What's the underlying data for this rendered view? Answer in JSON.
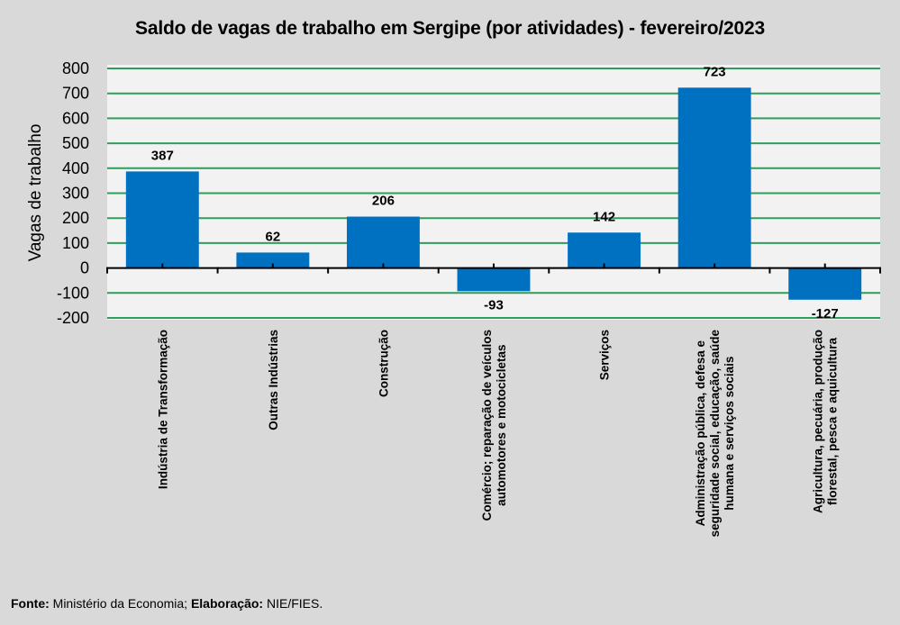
{
  "chart_data": {
    "type": "bar",
    "title": "Saldo de vagas de trabalho em Sergipe (por atividades) - fevereiro/2023",
    "xlabel": "",
    "ylabel": "Vagas de trabalho",
    "ylim": [
      -200,
      800
    ],
    "ytick_step": 100,
    "yticks": [
      "800",
      "700",
      "600",
      "500",
      "400",
      "300",
      "200",
      "100",
      "0",
      "-100",
      "-200"
    ],
    "grid": true,
    "legend": "none",
    "categories": [
      [
        "Indústria de Transformação"
      ],
      [
        "Outras Indústrias"
      ],
      [
        "Construção"
      ],
      [
        "Comércio; reparação de veículos",
        "automotores e motocicletas"
      ],
      [
        "Serviços"
      ],
      [
        "Administração pública, defesa e",
        "seguridade social, educação, saúde",
        "humana e serviços sociais"
      ],
      [
        "Agricultura, pecuária, produção",
        "florestal, pesca e aquicultura"
      ]
    ],
    "values": [
      387,
      62,
      206,
      -93,
      142,
      723,
      -127
    ],
    "data_labels": [
      "387",
      "62",
      "206",
      "-93",
      "142",
      "723",
      "-127"
    ],
    "colors": {
      "bar": "#0070c0",
      "grid": "#2e9e5b",
      "plot_bg": "#f2f2f2",
      "page_bg": "#d9d9d9",
      "axis": "#000000"
    }
  },
  "footer": {
    "source_label": "Fonte:",
    "source_text": " Ministério da Economia; ",
    "elab_label": "Elaboração:",
    "elab_text": " NIE/FIES."
  }
}
